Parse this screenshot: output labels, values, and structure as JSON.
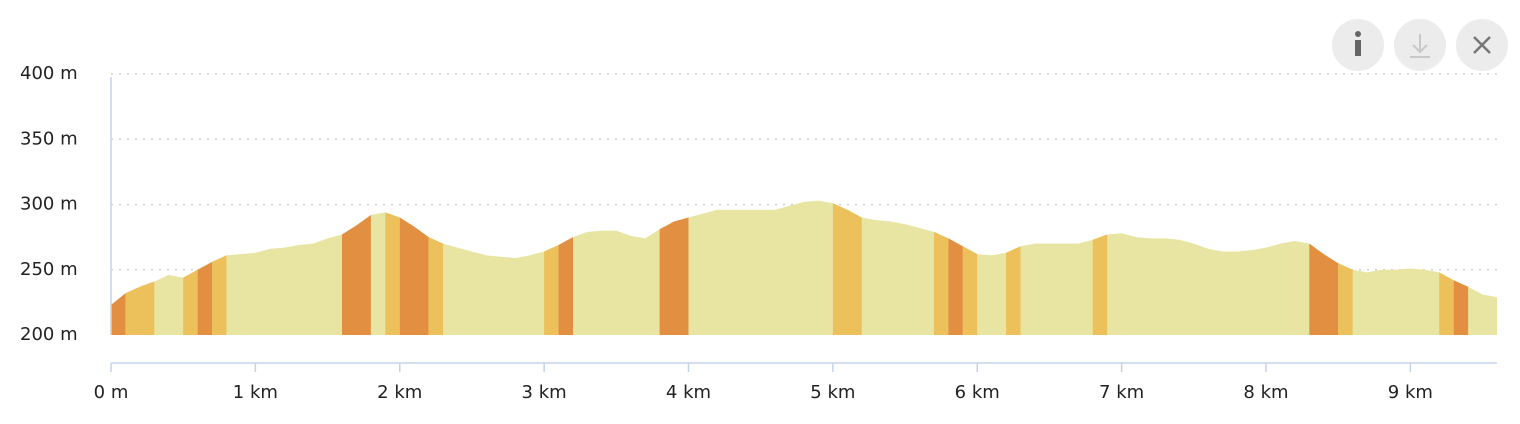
{
  "chart_data": {
    "type": "area",
    "x": [
      0,
      0.1,
      0.2,
      0.3,
      0.4,
      0.5,
      0.6,
      0.7,
      0.8,
      0.9,
      1,
      1.1,
      1.2,
      1.3,
      1.4,
      1.5,
      1.6,
      1.7,
      1.8,
      1.9,
      2,
      2.1,
      2.2,
      2.3,
      2.4,
      2.5,
      2.6,
      2.7,
      2.8,
      2.9,
      3,
      3.1,
      3.2,
      3.3,
      3.4,
      3.5,
      3.6,
      3.7,
      3.8,
      3.9,
      4,
      4.1,
      4.2,
      4.3,
      4.4,
      4.5,
      4.6,
      4.7,
      4.8,
      4.9,
      5,
      5.1,
      5.2,
      5.3,
      5.4,
      5.5,
      5.6,
      5.7,
      5.8,
      5.9,
      6,
      6.1,
      6.2,
      6.3,
      6.4,
      6.5,
      6.6,
      6.7,
      6.8,
      6.9,
      7,
      7.1,
      7.2,
      7.3,
      7.4,
      7.5,
      7.6,
      7.7,
      7.8,
      7.9,
      8,
      8.1,
      8.2,
      8.3,
      8.4,
      8.5,
      8.6,
      8.7,
      8.8,
      8.9,
      9,
      9.1,
      9.2,
      9.3,
      9.4,
      9.5,
      9.6
    ],
    "values": [
      223,
      232,
      237,
      241,
      246,
      244,
      250,
      256,
      261,
      262,
      263,
      266,
      267,
      269,
      270,
      274,
      277,
      284,
      292,
      294,
      290,
      283,
      275,
      270,
      267,
      264,
      261,
      260,
      259,
      261,
      264,
      269,
      275,
      279,
      280,
      280,
      276,
      274,
      281,
      287,
      290,
      293,
      296,
      296,
      296,
      296,
      296,
      299,
      302,
      303,
      301,
      296,
      290,
      288,
      287,
      285,
      282,
      279,
      274,
      268,
      262,
      261,
      263,
      268,
      270,
      270,
      270,
      270,
      273,
      277,
      278,
      275,
      274,
      274,
      273,
      270,
      266,
      264,
      264,
      265,
      267,
      270,
      272,
      270,
      262,
      255,
      250,
      248,
      250,
      250,
      251,
      250,
      248,
      242,
      237,
      231,
      229
    ],
    "color": "#e8e5a3",
    "bands": [
      {
        "x": [
          0,
          0.1
        ],
        "color": "#e38f42"
      },
      {
        "x": [
          0.1,
          0.3
        ],
        "color": "#ecc05a"
      },
      {
        "x": [
          0.5,
          0.6
        ],
        "color": "#ecc05a"
      },
      {
        "x": [
          0.6,
          0.7
        ],
        "color": "#e38f42"
      },
      {
        "x": [
          0.7,
          0.8
        ],
        "color": "#ecc05a"
      },
      {
        "x": [
          1.6,
          1.8
        ],
        "color": "#e38f42"
      },
      {
        "x": [
          1.9,
          2
        ],
        "color": "#ecc05a"
      },
      {
        "x": [
          2,
          2.2
        ],
        "color": "#e38f42"
      },
      {
        "x": [
          2.2,
          2.3
        ],
        "color": "#ecc05a"
      },
      {
        "x": [
          3,
          3.1
        ],
        "color": "#ecc05a"
      },
      {
        "x": [
          3.1,
          3.2
        ],
        "color": "#e38f42"
      },
      {
        "x": [
          3.8,
          4
        ],
        "color": "#e38f42"
      },
      {
        "x": [
          5,
          5.2
        ],
        "color": "#ecc05a"
      },
      {
        "x": [
          5.7,
          5.8
        ],
        "color": "#ecc05a"
      },
      {
        "x": [
          5.8,
          5.9
        ],
        "color": "#e38f42"
      },
      {
        "x": [
          5.9,
          6
        ],
        "color": "#ecc05a"
      },
      {
        "x": [
          6.2,
          6.3
        ],
        "color": "#ecc05a"
      },
      {
        "x": [
          6.8,
          6.9
        ],
        "color": "#ecc05a"
      },
      {
        "x": [
          8.3,
          8.5
        ],
        "color": "#e38f42"
      },
      {
        "x": [
          8.5,
          8.6
        ],
        "color": "#ecc05a"
      },
      {
        "x": [
          9.2,
          9.3
        ],
        "color": "#ecc05a"
      },
      {
        "x": [
          9.3,
          9.4
        ],
        "color": "#e38f42"
      }
    ],
    "xlim": [
      0,
      9.6
    ],
    "ylim": [
      200,
      400
    ],
    "xticks": [
      {
        "value": 0,
        "label": "0 m"
      },
      {
        "value": 1,
        "label": "1 km"
      },
      {
        "value": 2,
        "label": "2 km"
      },
      {
        "value": 3,
        "label": "3 km"
      },
      {
        "value": 4,
        "label": "4 km"
      },
      {
        "value": 5,
        "label": "5 km"
      },
      {
        "value": 6,
        "label": "6 km"
      },
      {
        "value": 7,
        "label": "7 km"
      },
      {
        "value": 8,
        "label": "8 km"
      },
      {
        "value": 9,
        "label": "9 km"
      }
    ],
    "yticks": [
      {
        "value": 200,
        "label": "200 m"
      },
      {
        "value": 250,
        "label": "250 m"
      },
      {
        "value": 300,
        "label": "300 m"
      },
      {
        "value": 350,
        "label": "350 m"
      },
      {
        "value": 400,
        "label": "400 m"
      }
    ],
    "grid": true
  }
}
